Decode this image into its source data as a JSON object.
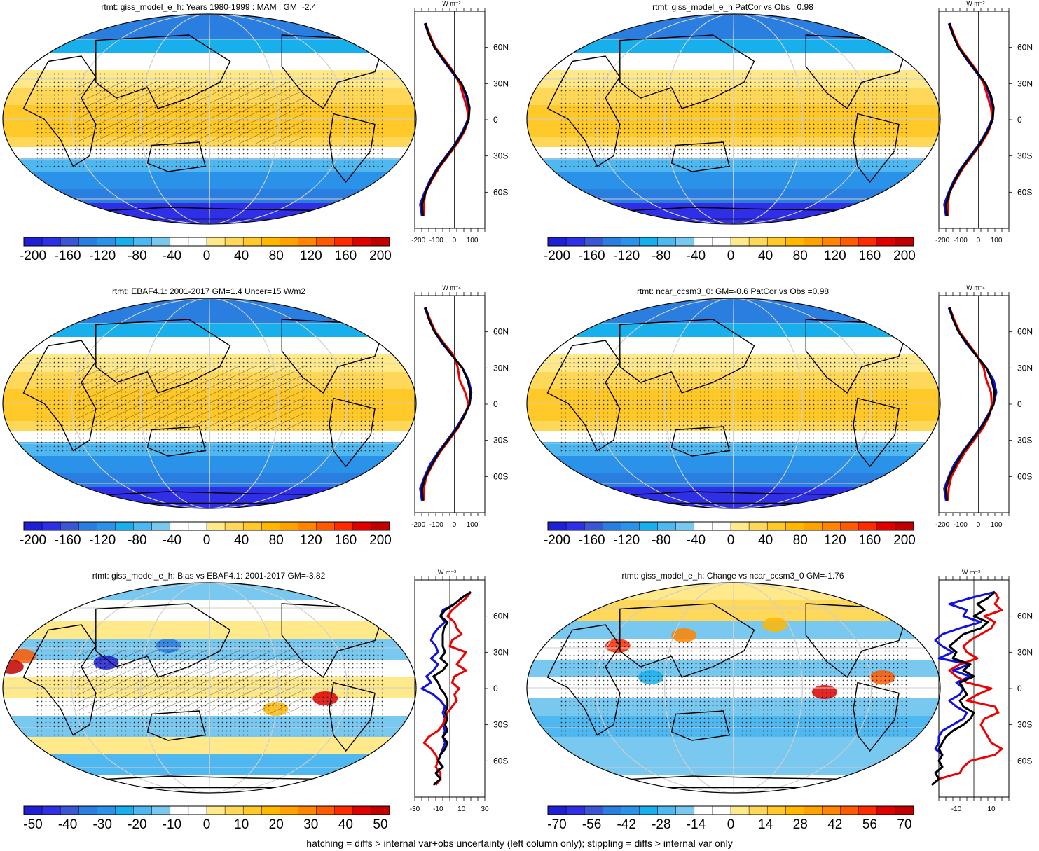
{
  "footer_note": "hatching = diffs > internal var+obs uncertainty (left column only); stippling = diffs > internal var only",
  "colors": {
    "abs_scale": [
      "#1f1fd6",
      "#2f2fe8",
      "#3a56d4",
      "#2a7ee0",
      "#2a92e8",
      "#18b0ec",
      "#50b8f0",
      "#78c8f0",
      "#ffffff",
      "#ffffff",
      "#ffe98a",
      "#ffd85a",
      "#ffc92a",
      "#ffb700",
      "#ffa200",
      "#ff8500",
      "#ff5a00",
      "#ff2a00",
      "#e00000",
      "#c00000"
    ],
    "profile_blue": "#1010e0",
    "profile_red": "#ee0000",
    "profile_black": "#000000",
    "ocean_cold": "#50b0f0",
    "land_line": "#000000",
    "grid_line": "#cfcfcf"
  },
  "panels": [
    {
      "id": "p1",
      "title": "rtmt: giss_model_e_h: Years 1980-1999 : MAM : GM=-2.4",
      "colorbar_ticks": [
        "-200",
        "-160",
        "-120",
        "-80",
        "-40",
        "0",
        "40",
        "80",
        "120",
        "160",
        "200"
      ],
      "profile_xticks": [
        "-200",
        "-100",
        "0",
        "100"
      ],
      "profile_unit": "W m⁻²",
      "profile_lat_labels": [
        "60N",
        "30N",
        "0",
        "30S",
        "60S"
      ],
      "style": "abs",
      "stipple": true,
      "hatch": true
    },
    {
      "id": "p2",
      "title": "rtmt: giss_model_e_h PatCor vs Obs =0.98",
      "colorbar_ticks": [
        "-200",
        "-160",
        "-120",
        "-80",
        "-40",
        "0",
        "40",
        "80",
        "120",
        "160",
        "200"
      ],
      "profile_xticks": [
        "-200",
        "-100",
        "0",
        "100"
      ],
      "profile_unit": "W m⁻²",
      "profile_lat_labels": [
        "60N",
        "30N",
        "0",
        "30S",
        "60S"
      ],
      "style": "abs",
      "stipple": true,
      "hatch": false
    },
    {
      "id": "p3",
      "title": "rtmt: EBAF4.1: 2001-2017 GM=1.4 Uncer=15 W/m2",
      "colorbar_ticks": [
        "-200",
        "-160",
        "-120",
        "-80",
        "-40",
        "0",
        "40",
        "80",
        "120",
        "160",
        "200"
      ],
      "profile_xticks": [
        "-200",
        "-100",
        "0",
        "100"
      ],
      "profile_unit": "W m⁻²",
      "profile_lat_labels": [
        "60N",
        "30N",
        "0",
        "30S",
        "60S"
      ],
      "style": "abs",
      "stipple": true,
      "hatch": true
    },
    {
      "id": "p4",
      "title": "rtmt: ncar_ccsm3_0: GM=-0.6 PatCor vs Obs =0.98",
      "colorbar_ticks": [
        "-200",
        "-160",
        "-120",
        "-80",
        "-40",
        "0",
        "40",
        "80",
        "120",
        "160",
        "200"
      ],
      "profile_xticks": [
        "-200",
        "-100",
        "0",
        "100"
      ],
      "profile_unit": "W m⁻²",
      "profile_lat_labels": [
        "60N",
        "30N",
        "0",
        "30S",
        "60S"
      ],
      "style": "abs",
      "stipple": true,
      "hatch": false
    },
    {
      "id": "p5",
      "title": "rtmt: giss_model_e_h: Bias vs EBAF4.1: 2001-2017 GM=-3.82",
      "colorbar_ticks": [
        "-50",
        "-40",
        "-30",
        "-20",
        "-10",
        "0",
        "10",
        "20",
        "30",
        "40",
        "50"
      ],
      "profile_xticks": [
        "-30",
        "-10",
        "10",
        "30"
      ],
      "profile_unit": "W m⁻²",
      "profile_lat_labels": [
        "60N",
        "30N",
        "0",
        "30S",
        "60S"
      ],
      "style": "diff",
      "stipple": true,
      "hatch": true
    },
    {
      "id": "p6",
      "title": "rtmt: giss_model_e_h: Change vs ncar_ccsm3_0 GM=-1.76",
      "colorbar_ticks": [
        "-70",
        "-56",
        "-42",
        "-28",
        "-14",
        "0",
        "14",
        "28",
        "42",
        "56",
        "70"
      ],
      "profile_xticks": [
        "-10",
        "10"
      ],
      "profile_unit": "W m⁻²",
      "profile_lat_labels": [
        "60N",
        "30N",
        "0",
        "30S",
        "60S"
      ],
      "style": "diff",
      "stipple": true,
      "hatch": false
    }
  ],
  "chart_data": [
    {
      "type": "heatmap",
      "title": "rtmt: giss_model_e_h: Years 1980-1999 : MAM : GM=-2.4",
      "colorbar_range": [
        -200,
        200
      ],
      "profile": {
        "lat": [
          80,
          70,
          60,
          50,
          40,
          30,
          20,
          10,
          0,
          -10,
          -20,
          -30,
          -40,
          -50,
          -60,
          -70,
          -80
        ],
        "series": [
          {
            "color": "black",
            "values": [
              -160,
              -140,
              -110,
              -60,
              -10,
              40,
              70,
              85,
              80,
              50,
              10,
              -40,
              -90,
              -130,
              -160,
              -180,
              -175
            ]
          },
          {
            "color": "blue",
            "values": [
              -165,
              -140,
              -110,
              -65,
              -15,
              35,
              65,
              80,
              75,
              45,
              5,
              -45,
              -95,
              -135,
              -165,
              -190,
              -180
            ]
          },
          {
            "color": "red",
            "values": [
              -160,
              -135,
              -105,
              -55,
              -5,
              30,
              50,
              70,
              80,
              55,
              15,
              -35,
              -85,
              -125,
              -160,
              -170,
              -170
            ]
          }
        ]
      }
    },
    {
      "type": "heatmap",
      "title": "rtmt: giss_model_e_h PatCor vs Obs =0.98",
      "colorbar_range": [
        -200,
        200
      ],
      "profile": {
        "lat": [
          80,
          70,
          60,
          50,
          40,
          30,
          20,
          10,
          0,
          -10,
          -20,
          -30,
          -40,
          -50,
          -60,
          -70,
          -80
        ],
        "series": [
          {
            "color": "black",
            "values": [
              -160,
              -140,
              -110,
              -60,
              -10,
              40,
              70,
              85,
              80,
              50,
              10,
              -40,
              -90,
              -130,
              -160,
              -180,
              -175
            ]
          },
          {
            "color": "blue",
            "values": [
              -165,
              -140,
              -110,
              -65,
              -15,
              35,
              65,
              80,
              75,
              45,
              5,
              -45,
              -95,
              -135,
              -165,
              -190,
              -180
            ]
          },
          {
            "color": "red",
            "values": [
              -160,
              -135,
              -105,
              -55,
              -5,
              30,
              50,
              70,
              80,
              55,
              15,
              -35,
              -85,
              -125,
              -160,
              -170,
              -170
            ]
          }
        ]
      }
    },
    {
      "type": "heatmap",
      "title": "rtmt: EBAF4.1: 2001-2017 GM=1.4 Uncer=15 W/m2",
      "colorbar_range": [
        -200,
        200
      ],
      "profile": {
        "lat": [
          80,
          70,
          60,
          50,
          40,
          30,
          20,
          10,
          0,
          -10,
          -20,
          -30,
          -40,
          -50,
          -60,
          -70,
          -80
        ],
        "series": [
          {
            "color": "black",
            "values": [
              -160,
              -140,
              -110,
              -60,
              -10,
              45,
              75,
              90,
              85,
              55,
              15,
              -35,
              -85,
              -125,
              -160,
              -180,
              -175
            ]
          },
          {
            "color": "blue",
            "values": [
              -165,
              -140,
              -110,
              -65,
              -10,
              45,
              80,
              95,
              85,
              50,
              10,
              -40,
              -90,
              -135,
              -165,
              -190,
              -180
            ]
          },
          {
            "color": "red",
            "values": [
              -160,
              -135,
              -105,
              -55,
              0,
              20,
              30,
              60,
              80,
              55,
              20,
              -30,
              -80,
              -120,
              -155,
              -170,
              -170
            ]
          }
        ]
      }
    },
    {
      "type": "heatmap",
      "title": "rtmt: ncar_ccsm3_0: GM=-0.6 PatCor vs Obs =0.98",
      "colorbar_range": [
        -200,
        200
      ],
      "profile": {
        "lat": [
          80,
          70,
          60,
          50,
          40,
          30,
          20,
          10,
          0,
          -10,
          -20,
          -30,
          -40,
          -50,
          -60,
          -70,
          -80
        ],
        "series": [
          {
            "color": "black",
            "values": [
              -160,
              -140,
              -110,
              -60,
              -10,
              45,
              75,
              90,
              85,
              55,
              15,
              -35,
              -85,
              -125,
              -160,
              -180,
              -175
            ]
          },
          {
            "color": "blue",
            "values": [
              -165,
              -140,
              -110,
              -65,
              -10,
              45,
              85,
              100,
              85,
              50,
              10,
              -40,
              -90,
              -135,
              -165,
              -190,
              -180
            ]
          },
          {
            "color": "red",
            "values": [
              -160,
              -135,
              -105,
              -55,
              -5,
              30,
              45,
              70,
              75,
              60,
              25,
              -25,
              -75,
              -115,
              -150,
              -165,
              -170
            ]
          }
        ]
      }
    },
    {
      "type": "heatmap",
      "title": "rtmt: giss_model_e_h: Bias vs EBAF4.1: 2001-2017 GM=-3.82",
      "colorbar_range": [
        -50,
        50
      ],
      "profile": {
        "lat": [
          80,
          75,
          70,
          65,
          60,
          55,
          50,
          45,
          40,
          35,
          30,
          25,
          20,
          15,
          10,
          5,
          0,
          -5,
          -10,
          -15,
          -20,
          -25,
          -30,
          -35,
          -40,
          -45,
          -50,
          -55,
          -60,
          -65,
          -70,
          -75,
          -80
        ],
        "series": [
          {
            "color": "black",
            "values": [
              18,
              10,
              4,
              -4,
              -8,
              -2,
              -5,
              -6,
              -6,
              -6,
              -4,
              -8,
              -2,
              -6,
              -14,
              -10,
              -8,
              -4,
              -2,
              -2,
              -4,
              -2,
              -4,
              -2,
              -6,
              -2,
              -4,
              -8,
              -10,
              -6,
              -12,
              -8,
              -14
            ]
          },
          {
            "color": "blue",
            "values": [
              18,
              10,
              4,
              -6,
              -8,
              -4,
              -10,
              -14,
              -16,
              -12,
              -10,
              -16,
              -10,
              -14,
              -20,
              -16,
              -24,
              -14,
              -8,
              -4,
              -6,
              -4,
              -6,
              -4,
              -6,
              -4,
              -6,
              -8,
              -10,
              -6,
              -12,
              -8,
              -14
            ]
          },
          {
            "color": "red",
            "values": [
              18,
              14,
              8,
              2,
              -2,
              4,
              6,
              10,
              2,
              0,
              14,
              10,
              6,
              14,
              4,
              2,
              8,
              4,
              6,
              2,
              -2,
              -4,
              -6,
              -10,
              -18,
              -22,
              -16,
              -12,
              -10,
              -12,
              -8,
              -8,
              -12
            ]
          }
        ]
      }
    },
    {
      "type": "heatmap",
      "title": "rtmt: giss_model_e_h: Change vs ncar_ccsm3_0 GM=-1.76",
      "colorbar_range": [
        -70,
        70
      ],
      "profile": {
        "lat": [
          80,
          75,
          70,
          65,
          60,
          55,
          50,
          45,
          40,
          35,
          30,
          25,
          20,
          15,
          10,
          5,
          0,
          -5,
          -10,
          -15,
          -20,
          -25,
          -30,
          -35,
          -40,
          -45,
          -50,
          -55,
          -60,
          -65,
          -70,
          -75,
          -80
        ],
        "series": [
          {
            "color": "black",
            "values": [
              12,
              8,
              2,
              6,
              0,
              8,
              4,
              -6,
              -10,
              -14,
              -10,
              -12,
              -2,
              -6,
              0,
              -8,
              -6,
              -4,
              -8,
              -6,
              0,
              -2,
              -6,
              -12,
              -16,
              -18,
              -20,
              -18,
              -20,
              -18,
              -22,
              -20,
              -24
            ]
          },
          {
            "color": "blue",
            "values": [
              12,
              -2,
              -14,
              -4,
              -6,
              4,
              -8,
              -18,
              -22,
              -18,
              -12,
              -20,
              -2,
              -12,
              -2,
              -10,
              -6,
              -8,
              -14,
              -10,
              -4,
              -6,
              -12,
              -18,
              -20,
              -20,
              -22,
              -18,
              -20,
              -18,
              -22,
              -20,
              -24
            ]
          },
          {
            "color": "red",
            "values": [
              12,
              14,
              12,
              16,
              6,
              12,
              10,
              4,
              -2,
              -6,
              -4,
              2,
              -8,
              -14,
              -10,
              -4,
              10,
              2,
              -4,
              12,
              14,
              6,
              4,
              6,
              8,
              10,
              16,
              12,
              -2,
              -6,
              -8,
              -20,
              -24
            ]
          }
        ]
      }
    }
  ]
}
